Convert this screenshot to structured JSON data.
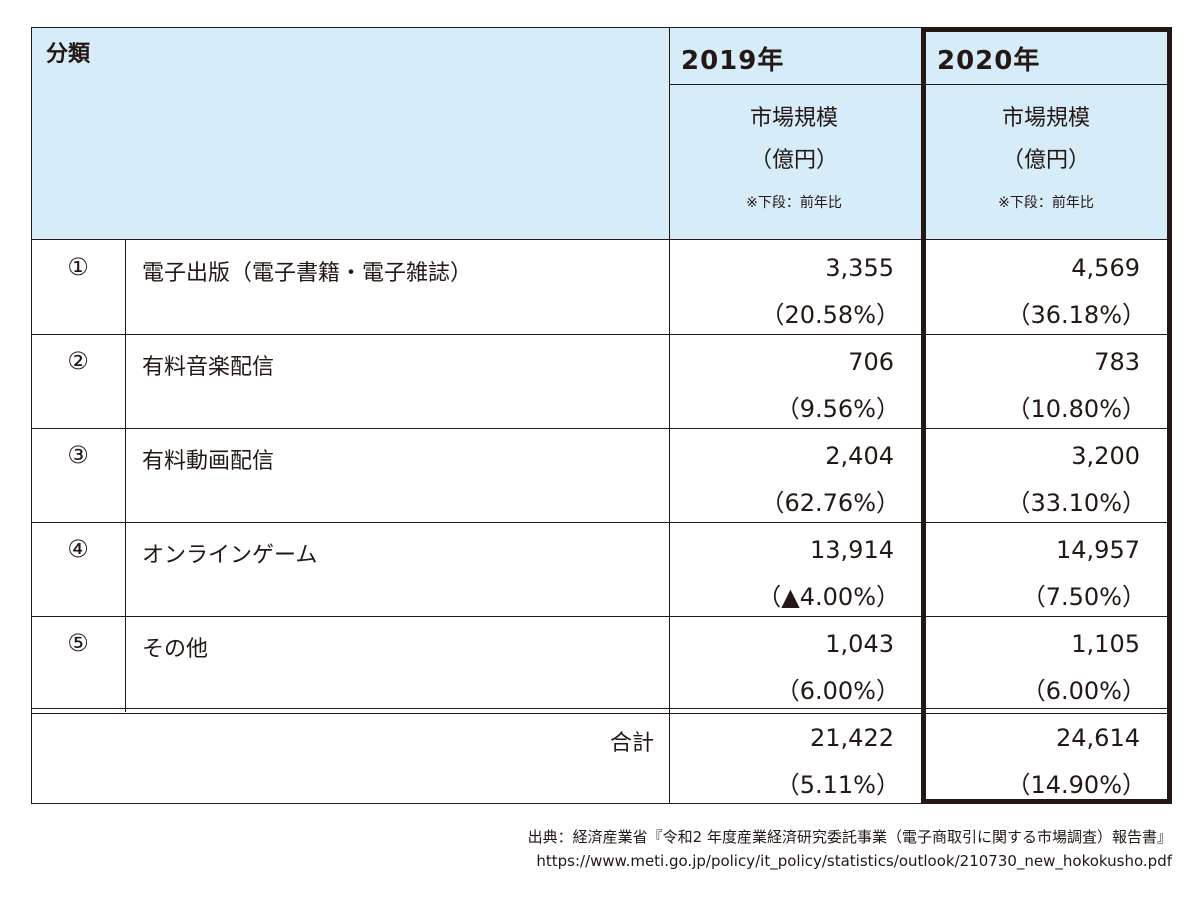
{
  "header": {
    "category": "分類",
    "year_2019": "2019年",
    "year_2020": "2020年",
    "market_size": "市場規模",
    "unit": "（億円）",
    "note": "※下段：前年比"
  },
  "rows": [
    {
      "no": "①",
      "label": "電子出版（電子書籍・電子雑誌）",
      "v2019": "3,355",
      "p2019": "（20.58%）",
      "v2020": "4,569",
      "p2020": "（36.18%）"
    },
    {
      "no": "②",
      "label": "有料音楽配信",
      "v2019": "706",
      "p2019": "（9.56%）",
      "v2020": "783",
      "p2020": "（10.80%）"
    },
    {
      "no": "③",
      "label": "有料動画配信",
      "v2019": "2,404",
      "p2019": "（62.76%）",
      "v2020": "3,200",
      "p2020": "（33.10%）"
    },
    {
      "no": "④",
      "label": "オンラインゲーム",
      "v2019": "13,914",
      "p2019": "（▲4.00%）",
      "v2020": "14,957",
      "p2020": "（7.50%）"
    },
    {
      "no": "⑤",
      "label": "その他",
      "v2019": "1,043",
      "p2019": "（6.00%）",
      "v2020": "1,105",
      "p2020": "（6.00%）"
    }
  ],
  "total": {
    "label": "合計",
    "v2019": "21,422",
    "p2019": "（5.11%）",
    "v2020": "24,614",
    "p2020": "（14.90%）"
  },
  "source": {
    "line1": "出典：経済産業省『令和2 年度産業経済研究委託事業（電子商取引に関する市場調査）報告書』",
    "line2": "https://www.meti.go.jp/policy/it_policy/statistics/outlook/210730_new_hokokusho.pdf"
  },
  "colors": {
    "header_bg": "#d6ecf8",
    "text": "#231815"
  }
}
